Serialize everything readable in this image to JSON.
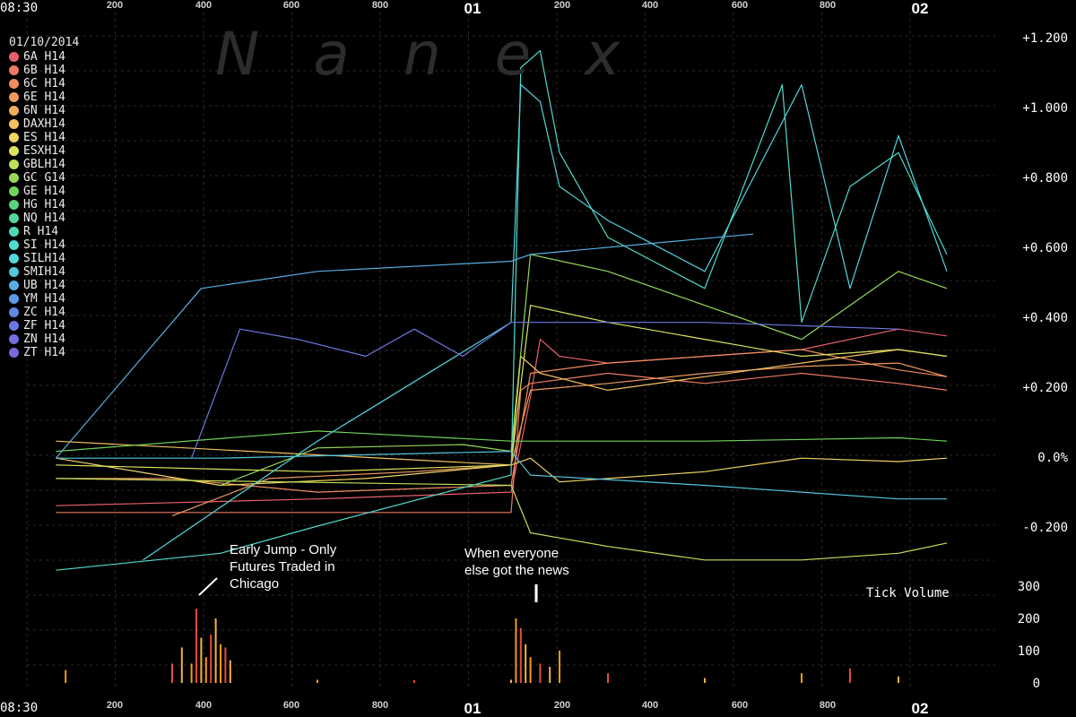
{
  "watermark": "Nanex",
  "date": "01/10/2014",
  "x_axis": {
    "start_label": "08:30",
    "ticks": [
      "200",
      "400",
      "600",
      "800",
      "01",
      "200",
      "400",
      "600",
      "800",
      "02"
    ]
  },
  "y_axis_price": [
    "+1.200",
    "+1.000",
    "+0.800",
    "+0.600",
    "+0.400",
    "+0.200",
    "0.0%",
    "-0.200"
  ],
  "y_axis_volume": [
    "300",
    "200",
    "100",
    "0"
  ],
  "volume_title": "Tick Volume",
  "annotations": {
    "early_jump": [
      "Early Jump - Only",
      "Futures Traded in",
      "Chicago"
    ],
    "news": [
      "When everyone",
      "else got the news"
    ]
  },
  "legend": [
    {
      "label": "6A H14",
      "color": "#e8606a"
    },
    {
      "label": "6B H14",
      "color": "#ec7a62"
    },
    {
      "label": "6C H14",
      "color": "#ef8c60"
    },
    {
      "label": "6E H14",
      "color": "#f09a5e"
    },
    {
      "label": "6N H14",
      "color": "#f2ac5c"
    },
    {
      "label": "DAXH14",
      "color": "#f2c060"
    },
    {
      "label": "ES H14",
      "color": "#eed462"
    },
    {
      "label": "ESXH14",
      "color": "#dde35e"
    },
    {
      "label": "GBLH14",
      "color": "#bfe15a"
    },
    {
      "label": "GC G14",
      "color": "#94d856"
    },
    {
      "label": "GE H14",
      "color": "#6fd25a"
    },
    {
      "label": "HG H14",
      "color": "#58d47a"
    },
    {
      "label": "NQ H14",
      "color": "#52d69c"
    },
    {
      "label": "R  H14",
      "color": "#50d8b8"
    },
    {
      "label": "SI H14",
      "color": "#50dacc"
    },
    {
      "label": "SILH14",
      "color": "#52d4dc"
    },
    {
      "label": "SMIH14",
      "color": "#54c4e0"
    },
    {
      "label": "UB H14",
      "color": "#58aee2"
    },
    {
      "label": "YM H14",
      "color": "#5c9ae4"
    },
    {
      "label": "ZC H14",
      "color": "#6288e4"
    },
    {
      "label": "ZF H14",
      "color": "#6a78e2"
    },
    {
      "label": "ZN H14",
      "color": "#726ee0"
    },
    {
      "label": "ZT H14",
      "color": "#7a68dc"
    }
  ],
  "chart_data": {
    "type": "line",
    "y_unit": "percent change",
    "ylim": [
      -0.34,
      1.22
    ],
    "volume_ylim": [
      0,
      300
    ],
    "series": [
      {
        "name": "6A H14",
        "x": [
          0.03,
          0.3,
          0.5,
          0.52,
          0.53,
          0.55,
          0.6,
          0.7,
          0.8,
          0.9,
          0.95
        ],
        "y": [
          -0.14,
          -0.12,
          -0.1,
          0.18,
          0.35,
          0.3,
          0.28,
          0.3,
          0.32,
          0.38,
          0.36
        ]
      },
      {
        "name": "6B H14",
        "x": [
          0.03,
          0.2,
          0.4,
          0.5,
          0.51,
          0.52,
          0.6,
          0.7,
          0.8,
          0.9,
          0.95
        ],
        "y": [
          -0.16,
          -0.16,
          -0.16,
          -0.16,
          0.2,
          0.22,
          0.25,
          0.22,
          0.25,
          0.22,
          0.2
        ]
      },
      {
        "name": "6C H14",
        "x": [
          0.03,
          0.15,
          0.3,
          0.5,
          0.52,
          0.6,
          0.7,
          0.8,
          0.9,
          0.95
        ],
        "y": [
          -0.06,
          -0.06,
          -0.1,
          -0.08,
          0.25,
          0.28,
          0.3,
          0.32,
          0.26,
          0.24
        ]
      },
      {
        "name": "6E H14",
        "x": [
          0.15,
          0.25,
          0.4,
          0.5,
          0.52,
          0.6,
          0.7,
          0.8,
          0.9,
          0.95
        ],
        "y": [
          -0.17,
          -0.06,
          -0.04,
          -0.02,
          0.2,
          0.22,
          0.25,
          0.27,
          0.28,
          0.24
        ]
      },
      {
        "name": "DAXH14",
        "x": [
          0.03,
          0.5,
          0.51,
          0.53,
          0.6,
          0.7,
          0.8,
          0.9,
          0.95
        ],
        "y": [
          0.05,
          -0.02,
          0.3,
          0.25,
          0.2,
          0.24,
          0.28,
          0.32,
          0.3
        ]
      },
      {
        "name": "ES H14",
        "x": [
          0.03,
          0.2,
          0.35,
          0.5,
          0.52,
          0.55,
          0.6,
          0.7,
          0.8,
          0.9,
          0.95
        ],
        "y": [
          0.0,
          -0.08,
          -0.06,
          -0.02,
          0.0,
          -0.07,
          -0.06,
          -0.04,
          0.0,
          -0.01,
          0.0
        ]
      },
      {
        "name": "ESXH14",
        "x": [
          0.03,
          0.3,
          0.5,
          0.52,
          0.6,
          0.7,
          0.8,
          0.9,
          0.95
        ],
        "y": [
          -0.02,
          -0.04,
          -0.02,
          0.45,
          0.4,
          0.35,
          0.3,
          0.32,
          0.3
        ]
      },
      {
        "name": "GBLH14",
        "x": [
          0.03,
          0.5,
          0.52,
          0.6,
          0.7,
          0.8,
          0.9,
          0.95
        ],
        "y": [
          -0.06,
          -0.08,
          -0.22,
          -0.26,
          -0.3,
          -0.3,
          -0.28,
          -0.25
        ]
      },
      {
        "name": "GC G14",
        "x": [
          0.2,
          0.3,
          0.45,
          0.5,
          0.52,
          0.6,
          0.7,
          0.8,
          0.9,
          0.95
        ],
        "y": [
          -0.08,
          0.03,
          0.04,
          0.02,
          0.6,
          0.55,
          0.45,
          0.35,
          0.55,
          0.5
        ]
      },
      {
        "name": "GE H14",
        "x": [
          0.03,
          0.3,
          0.5,
          0.55,
          0.7,
          0.9,
          0.95
        ],
        "y": [
          0.02,
          0.08,
          0.05,
          0.05,
          0.05,
          0.06,
          0.05
        ]
      },
      {
        "name": "SI H14",
        "x": [
          0.03,
          0.2,
          0.3,
          0.5,
          0.51,
          0.53,
          0.55,
          0.6,
          0.7,
          0.78,
          0.8,
          0.85,
          0.9,
          0.95
        ],
        "y": [
          -0.33,
          -0.28,
          -0.2,
          -0.05,
          1.15,
          1.2,
          0.9,
          0.65,
          0.5,
          1.1,
          0.4,
          0.8,
          0.9,
          0.6
        ]
      },
      {
        "name": "SILH14",
        "x": [
          0.12,
          0.3,
          0.5,
          0.51,
          0.53,
          0.55,
          0.6,
          0.7,
          0.8,
          0.85,
          0.9,
          0.95
        ],
        "y": [
          -0.3,
          0.05,
          0.4,
          1.1,
          1.05,
          0.8,
          0.7,
          0.55,
          1.1,
          0.5,
          0.95,
          0.55
        ]
      },
      {
        "name": "SMIH14",
        "x": [
          0.03,
          0.2,
          0.5,
          0.52,
          0.7,
          0.9,
          0.95
        ],
        "y": [
          0.0,
          0.0,
          0.02,
          -0.05,
          -0.08,
          -0.12,
          -0.12
        ]
      },
      {
        "name": "UB H14",
        "x": [
          0.03,
          0.18,
          0.3,
          0.5,
          0.52,
          0.75
        ],
        "y": [
          0.0,
          0.5,
          0.55,
          0.58,
          0.6,
          0.66
        ]
      },
      {
        "name": "ZF H14",
        "x": [
          0.17,
          0.22,
          0.28,
          0.35,
          0.4,
          0.45,
          0.5,
          0.52,
          0.7,
          0.9
        ],
        "y": [
          0.0,
          0.38,
          0.35,
          0.3,
          0.38,
          0.3,
          0.4,
          0.4,
          0.4,
          0.38
        ]
      }
    ],
    "volume": {
      "x": [
        0.04,
        0.15,
        0.16,
        0.17,
        0.175,
        0.18,
        0.185,
        0.19,
        0.195,
        0.2,
        0.205,
        0.21,
        0.3,
        0.4,
        0.5,
        0.505,
        0.51,
        0.515,
        0.52,
        0.53,
        0.54,
        0.55,
        0.6,
        0.7,
        0.8,
        0.85,
        0.9
      ],
      "y": [
        40,
        60,
        110,
        60,
        230,
        140,
        80,
        150,
        200,
        120,
        110,
        70,
        10,
        8,
        10,
        200,
        170,
        120,
        80,
        60,
        50,
        100,
        30,
        15,
        30,
        45,
        20
      ]
    }
  }
}
